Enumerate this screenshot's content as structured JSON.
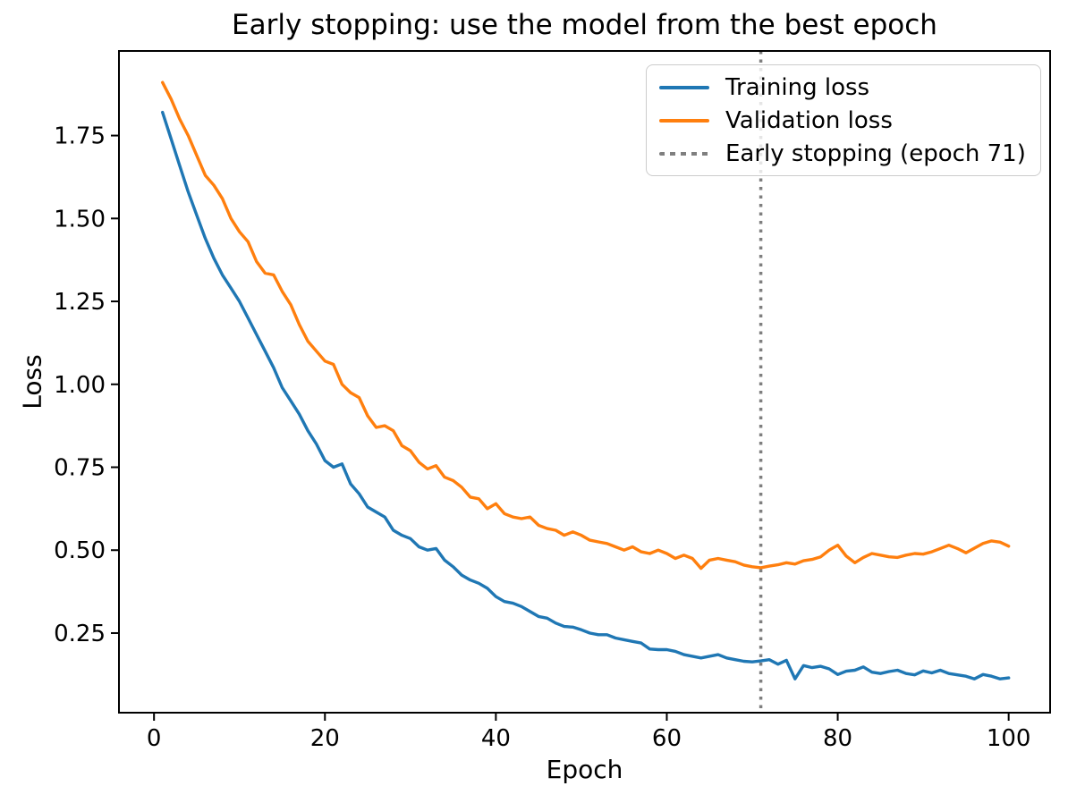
{
  "chart_data": {
    "type": "line",
    "title": "Early stopping: use the model from the best epoch",
    "xlabel": "Epoch",
    "ylabel": "Loss",
    "xlim": [
      -4.1,
      104.85
    ],
    "ylim": [
      0.01,
      2.005
    ],
    "x_ticks": [
      0,
      20,
      40,
      60,
      80,
      100
    ],
    "y_ticks": [
      0.25,
      0.5,
      0.75,
      1.0,
      1.25,
      1.5,
      1.75
    ],
    "y_tick_labels": [
      "0.25",
      "0.50",
      "0.75",
      "1.00",
      "1.25",
      "1.50",
      "1.75"
    ],
    "grid": false,
    "legend_position": "upper right",
    "epochs": [
      1,
      2,
      3,
      4,
      5,
      6,
      7,
      8,
      9,
      10,
      11,
      12,
      13,
      14,
      15,
      16,
      17,
      18,
      19,
      20,
      21,
      22,
      23,
      24,
      25,
      26,
      27,
      28,
      29,
      30,
      31,
      32,
      33,
      34,
      35,
      36,
      37,
      38,
      39,
      40,
      41,
      42,
      43,
      44,
      45,
      46,
      47,
      48,
      49,
      50,
      51,
      52,
      53,
      54,
      55,
      56,
      57,
      58,
      59,
      60,
      61,
      62,
      63,
      64,
      65,
      66,
      67,
      68,
      69,
      70,
      71,
      72,
      73,
      74,
      75,
      76,
      77,
      78,
      79,
      80,
      81,
      82,
      83,
      84,
      85,
      86,
      87,
      88,
      89,
      90,
      91,
      92,
      93,
      94,
      95,
      96,
      97,
      98,
      99,
      100
    ],
    "series": [
      {
        "name": "Training loss",
        "color": "#1f77b4",
        "values": [
          1.82,
          1.74,
          1.66,
          1.58,
          1.51,
          1.44,
          1.38,
          1.33,
          1.29,
          1.25,
          1.2,
          1.15,
          1.1,
          1.05,
          0.99,
          0.95,
          0.91,
          0.86,
          0.82,
          0.77,
          0.75,
          0.76,
          0.7,
          0.67,
          0.63,
          0.615,
          0.6,
          0.56,
          0.545,
          0.535,
          0.51,
          0.5,
          0.505,
          0.47,
          0.45,
          0.425,
          0.41,
          0.4,
          0.385,
          0.36,
          0.345,
          0.34,
          0.33,
          0.315,
          0.3,
          0.295,
          0.28,
          0.27,
          0.268,
          0.26,
          0.25,
          0.245,
          0.245,
          0.235,
          0.23,
          0.225,
          0.22,
          0.202,
          0.2,
          0.2,
          0.195,
          0.185,
          0.18,
          0.175,
          0.18,
          0.185,
          0.175,
          0.17,
          0.165,
          0.163,
          0.166,
          0.17,
          0.156,
          0.168,
          0.112,
          0.152,
          0.146,
          0.15,
          0.142,
          0.125,
          0.135,
          0.138,
          0.148,
          0.132,
          0.128,
          0.134,
          0.138,
          0.128,
          0.124,
          0.136,
          0.13,
          0.138,
          0.128,
          0.124,
          0.12,
          0.112,
          0.125,
          0.12,
          0.112,
          0.115
        ]
      },
      {
        "name": "Validation loss",
        "color": "#ff7f0e",
        "values": [
          1.91,
          1.86,
          1.8,
          1.75,
          1.69,
          1.63,
          1.6,
          1.56,
          1.5,
          1.46,
          1.43,
          1.37,
          1.335,
          1.33,
          1.28,
          1.24,
          1.18,
          1.13,
          1.1,
          1.07,
          1.06,
          1.0,
          0.975,
          0.96,
          0.905,
          0.87,
          0.875,
          0.86,
          0.815,
          0.8,
          0.765,
          0.745,
          0.755,
          0.72,
          0.71,
          0.69,
          0.66,
          0.655,
          0.625,
          0.64,
          0.61,
          0.6,
          0.595,
          0.6,
          0.575,
          0.565,
          0.56,
          0.545,
          0.555,
          0.545,
          0.53,
          0.525,
          0.52,
          0.51,
          0.5,
          0.51,
          0.495,
          0.49,
          0.5,
          0.49,
          0.475,
          0.485,
          0.475,
          0.445,
          0.47,
          0.475,
          0.47,
          0.465,
          0.455,
          0.45,
          0.447,
          0.452,
          0.456,
          0.462,
          0.458,
          0.468,
          0.472,
          0.48,
          0.5,
          0.515,
          0.482,
          0.462,
          0.478,
          0.49,
          0.485,
          0.48,
          0.478,
          0.485,
          0.49,
          0.488,
          0.495,
          0.505,
          0.515,
          0.505,
          0.492,
          0.506,
          0.52,
          0.528,
          0.524,
          0.512
        ]
      }
    ],
    "early_stopping": {
      "label": "Early stopping (epoch 71)",
      "epoch": 71,
      "color": "#7f7f7f",
      "line_style": "dotted"
    }
  },
  "colors": {
    "spine": "#000000",
    "background": "#ffffff",
    "legend_border": "#cccccc",
    "text": "#000000"
  }
}
